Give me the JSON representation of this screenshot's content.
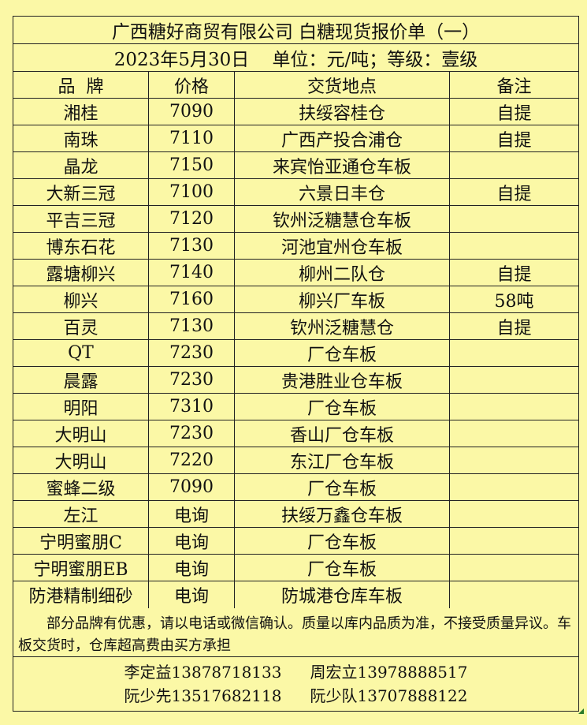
{
  "title": "广西糖好商贸有限公司  白糖现货报价单（一）",
  "subtitle": "2023年5月30日    单位：元/吨；等级：壹级",
  "headers": [
    "品  牌",
    "价格",
    "交货地点",
    "备注"
  ],
  "rows": [
    [
      "湘桂",
      "7090",
      "扶绥容桂仓",
      "自提"
    ],
    [
      "南珠",
      "7110",
      "广西产投合浦仓",
      "自提"
    ],
    [
      "晶龙",
      "7150",
      "来宾怡亚通仓车板",
      ""
    ],
    [
      "大新三冠",
      "7100",
      "六景日丰仓",
      "自提"
    ],
    [
      "平吉三冠",
      "7120",
      "钦州泛糖慧仓车板",
      ""
    ],
    [
      "博东石花",
      "7130",
      "河池宜州仓车板",
      ""
    ],
    [
      "露塘柳兴",
      "7140",
      "柳州二队仓",
      "自提"
    ],
    [
      "柳兴",
      "7160",
      "柳兴厂车板",
      "58吨"
    ],
    [
      "百灵",
      "7130",
      "钦州泛糖慧仓",
      "自提"
    ],
    [
      "QT",
      "7230",
      "厂仓车板",
      ""
    ],
    [
      "晨露",
      "7230",
      "贵港胜业仓车板",
      ""
    ],
    [
      "明阳",
      "7310",
      "厂仓车板",
      ""
    ],
    [
      "大明山",
      "7230",
      "香山厂仓车板",
      ""
    ],
    [
      "大明山",
      "7220",
      "东江厂仓车板",
      ""
    ],
    [
      "蜜蜂二级",
      "7090",
      "厂仓车板",
      ""
    ],
    [
      "左江",
      "电询",
      "扶绥万鑫仓车板",
      ""
    ],
    [
      "宁明蜜朋C",
      "电询",
      "厂仓车板",
      ""
    ],
    [
      "宁明蜜朋EB",
      "电询",
      "厂仓车板",
      ""
    ],
    [
      "防港精制细砂",
      "电询",
      "防城港仓库车板",
      ""
    ]
  ],
  "notes": "部分品牌有优惠，请以电话或微信确认。质量以库内品质为准，不接受质量异议。车板交货时，仓库超高费由买方承担",
  "contacts": [
    [
      "李定益13878718133",
      "周宏立13978888517"
    ],
    [
      "阮少先13517682118",
      "阮少队13707888122"
    ]
  ],
  "colors": {
    "background": "#fbf8a6",
    "border": "#222222"
  }
}
